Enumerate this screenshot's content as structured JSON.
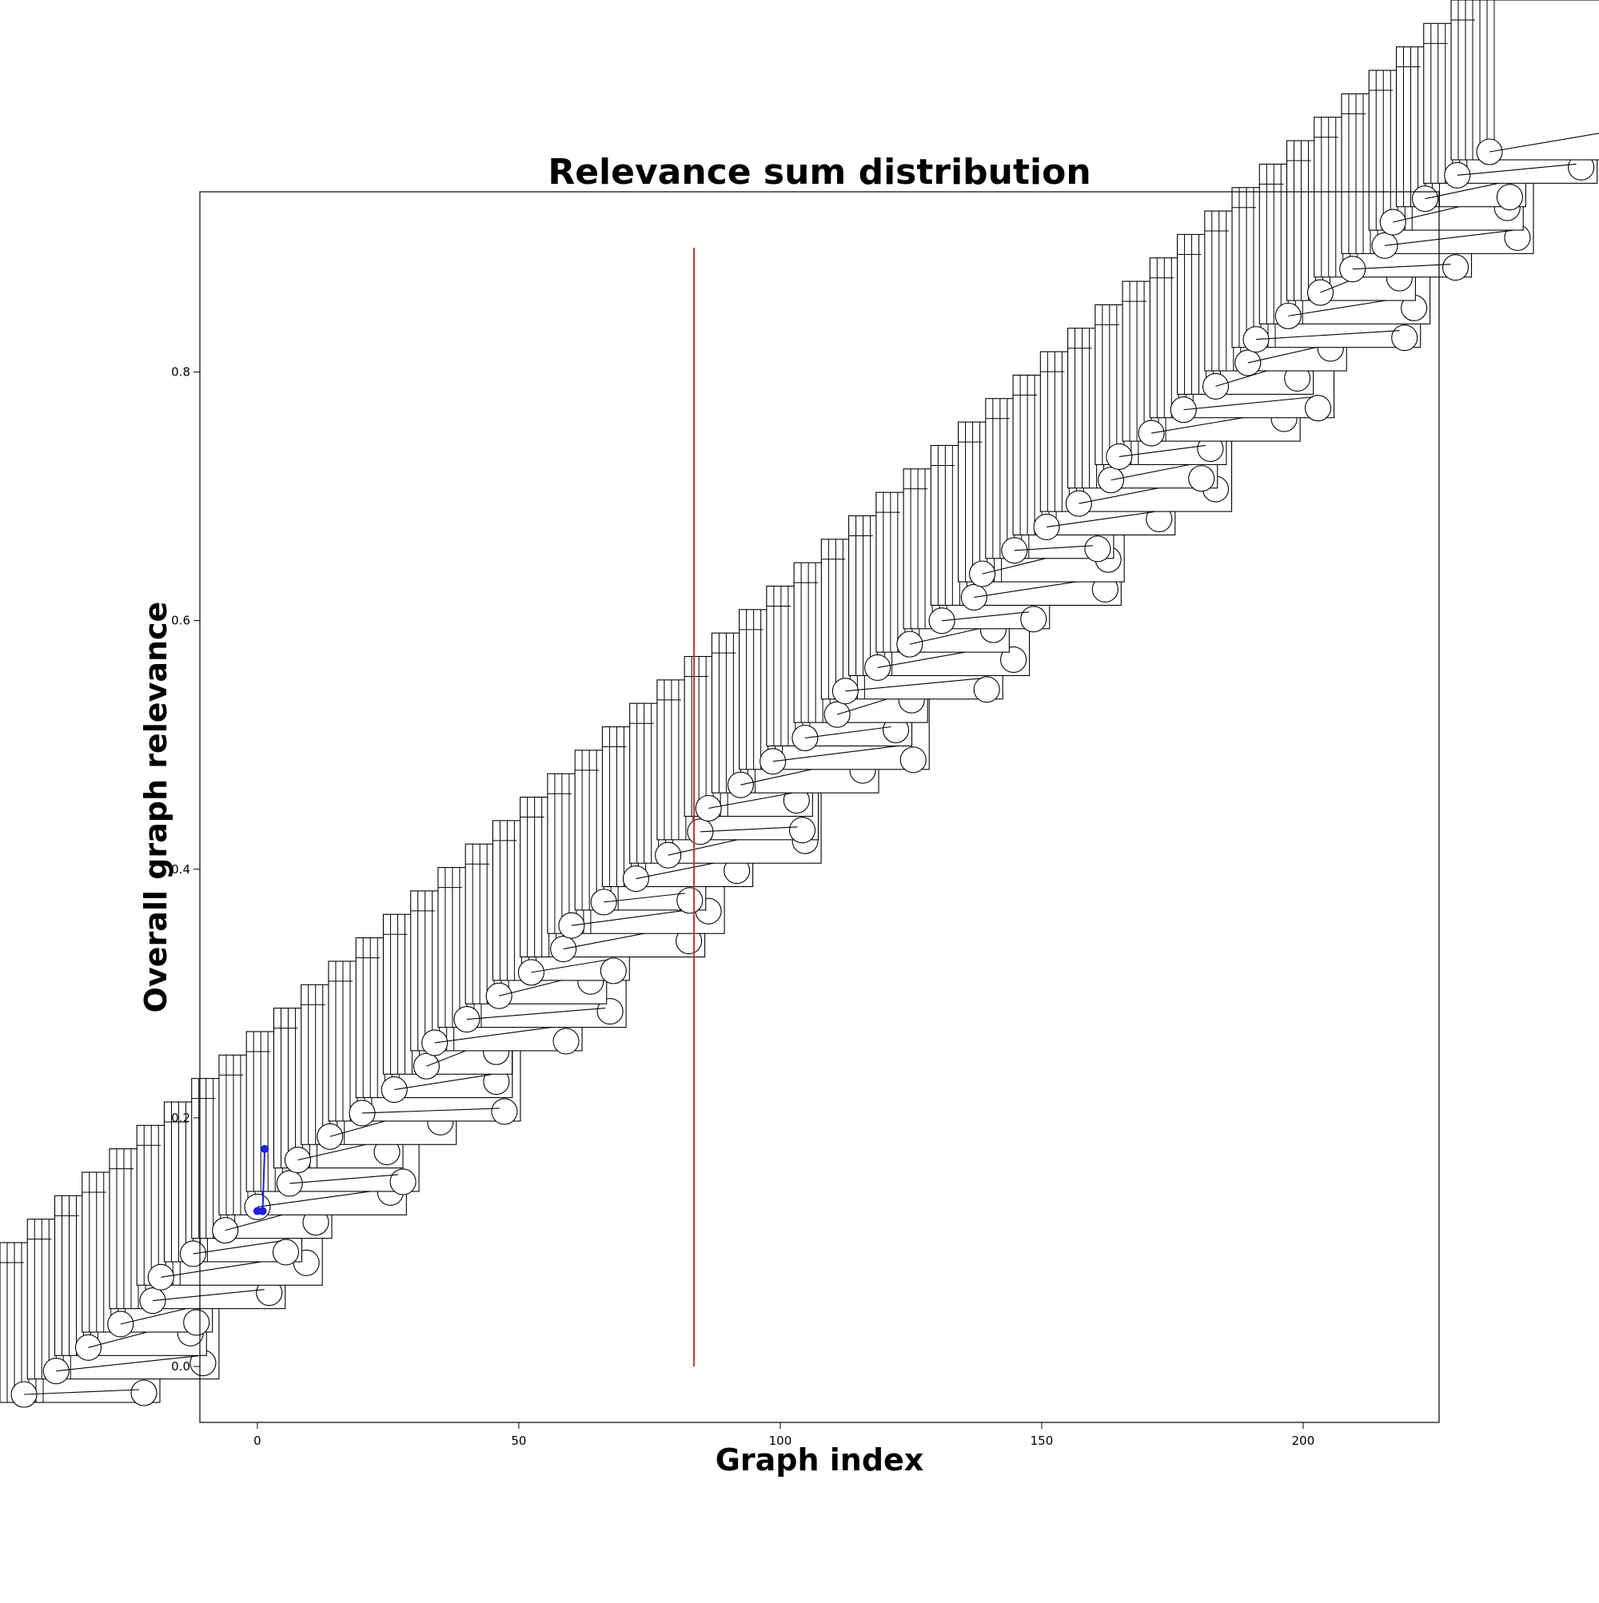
{
  "chart_data": {
    "type": "line",
    "title": "Relevance sum distribution",
    "xlabel": "Graph index",
    "ylabel": "Overall graph relevance",
    "xlim": [
      -11,
      226
    ],
    "ylim": [
      -0.045,
      0.945
    ],
    "x_ticks": [
      0,
      50,
      100,
      150,
      200
    ],
    "x_tick_labels": [
      "0",
      "50",
      "100",
      "150",
      "200"
    ],
    "y_ticks": [
      0.0,
      0.2,
      0.4,
      0.6,
      0.8
    ],
    "y_tick_labels": [
      "0.0",
      "0.2",
      "0.4",
      "0.6",
      "0.8"
    ],
    "grid": false,
    "threshold_line": {
      "x": 83.5,
      "y_from": 0.0,
      "y_to": 0.9,
      "color": "#c0392b"
    },
    "series": [
      {
        "x": [
          0,
          1
        ],
        "y": [
          0.125,
          0.125
        ],
        "color": "#1f1fdd"
      },
      {
        "x": [
          1,
          1.4
        ],
        "y": [
          0.125,
          0.175
        ],
        "color": "#1f1fdd"
      }
    ],
    "glyph_stack": {
      "description_color": "#000000",
      "count": 54
    }
  }
}
